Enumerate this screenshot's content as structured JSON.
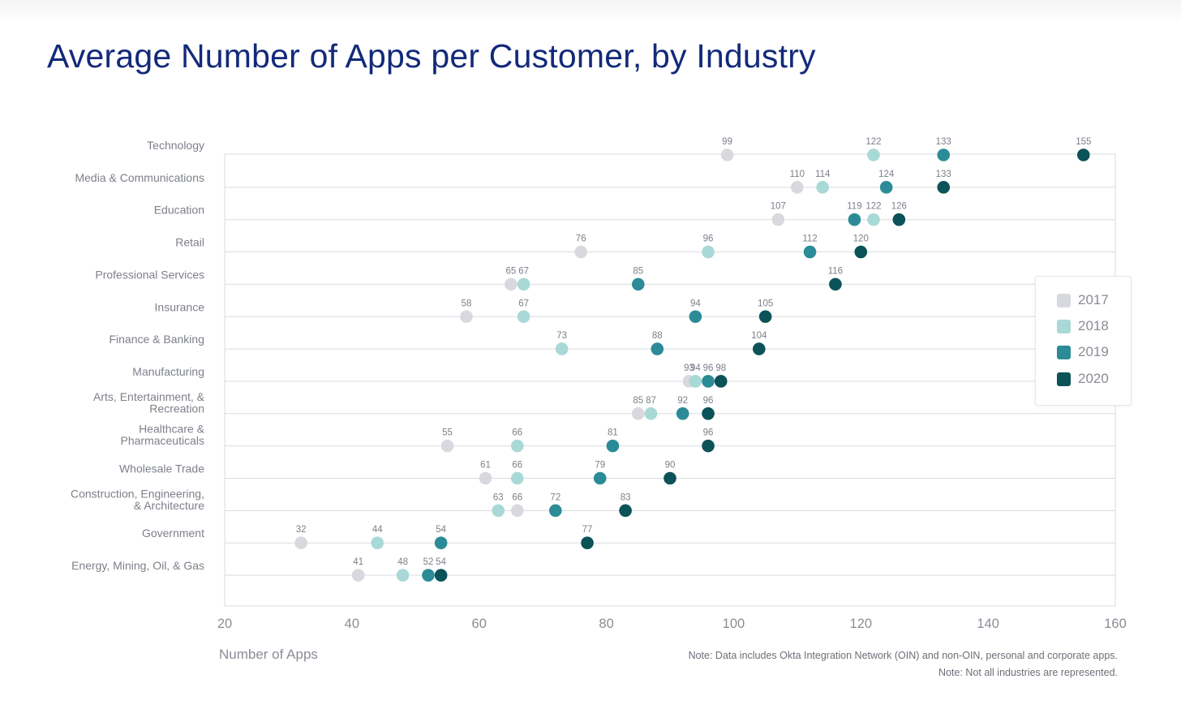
{
  "title": "Average Number of Apps per Customer, by Industry",
  "notes": [
    "Note: Data includes Okta Integration Network (OIN) and non-OIN, personal and corporate apps.",
    "Note: Not all industries are represented."
  ],
  "colors": {
    "2017": "#d8d9de",
    "2018": "#a9d9d7",
    "2019": "#2b8c97",
    "2020": "#0b5358"
  },
  "chart_data": {
    "type": "scatter",
    "title": "Average Number of Apps per Customer, by Industry",
    "xlabel": "Number of Apps",
    "ylabel": "",
    "xlim": [
      20,
      160
    ],
    "xticks": [
      20,
      40,
      60,
      80,
      100,
      120,
      140,
      160
    ],
    "grid": "horizontal",
    "legend_position": "right",
    "series_names": [
      "2017",
      "2018",
      "2019",
      "2020"
    ],
    "categories": [
      [
        "Technology"
      ],
      [
        "Media & Communications"
      ],
      [
        "Education"
      ],
      [
        "Retail"
      ],
      [
        "Professional Services"
      ],
      [
        "Insurance"
      ],
      [
        "Finance & Banking"
      ],
      [
        "Manufacturing"
      ],
      [
        "Arts, Entertainment, &",
        "Recreation"
      ],
      [
        "Healthcare &",
        "Pharmaceuticals"
      ],
      [
        "Wholesale Trade"
      ],
      [
        "Construction, Engineering,",
        "& Architecture"
      ],
      [
        "Government"
      ],
      [
        "Energy, Mining, Oil, & Gas"
      ]
    ],
    "series": [
      {
        "name": "2017",
        "values": [
          99,
          110,
          107,
          76,
          65,
          58,
          73,
          93,
          85,
          55,
          61,
          66,
          32,
          41
        ]
      },
      {
        "name": "2018",
        "values": [
          122,
          114,
          122,
          96,
          67,
          67,
          73,
          94,
          87,
          66,
          66,
          63,
          44,
          48
        ]
      },
      {
        "name": "2019",
        "values": [
          133,
          124,
          119,
          112,
          85,
          94,
          88,
          96,
          92,
          81,
          79,
          72,
          54,
          52
        ]
      },
      {
        "name": "2020",
        "values": [
          155,
          133,
          126,
          120,
          116,
          105,
          104,
          98,
          96,
          96,
          90,
          83,
          77,
          54
        ]
      }
    ]
  }
}
